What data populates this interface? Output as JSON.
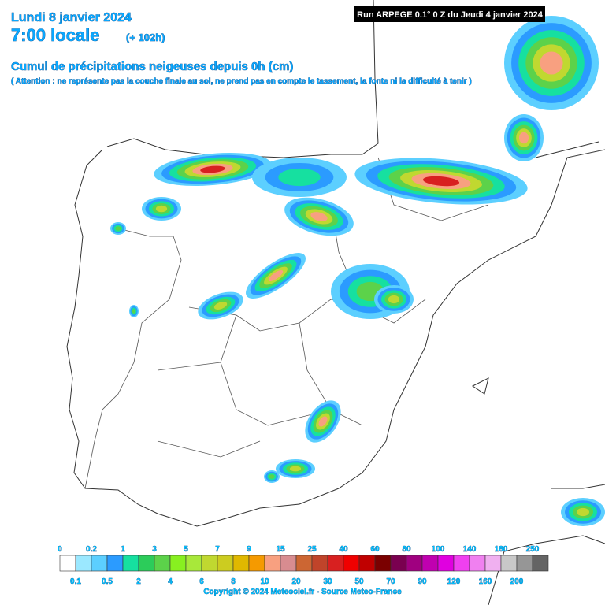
{
  "header": {
    "date": "Lundi 8 janvier 2024",
    "time": "7:00 locale",
    "lead": "(+ 102h)",
    "run": "Run ARPEGE 0.1° 0 Z du Jeudi 4 janvier 2024",
    "title": "Cumul de précipitations neigeuses depuis 0h (cm)",
    "note": "( Attention : ne représente pas la couche finale au sol, ne prend pas en compte le tassement, la fonte ni la difficulté à tenir )"
  },
  "legend": {
    "values": [
      0,
      0.1,
      0.2,
      0.5,
      1,
      2,
      3,
      4,
      5,
      6,
      7,
      8,
      9,
      10,
      15,
      20,
      25,
      30,
      40,
      50,
      60,
      70,
      80,
      90,
      100,
      120,
      140,
      160,
      180,
      200,
      250
    ],
    "colors": [
      "#ffffff",
      "#9be8ff",
      "#5ccfff",
      "#2b9bff",
      "#16e0a0",
      "#2ccc5a",
      "#5cd24a",
      "#88f020",
      "#a8e83a",
      "#c0d830",
      "#cccc20",
      "#e0b800",
      "#f59a00",
      "#f8a080",
      "#d88c90",
      "#cc6633",
      "#c0442a",
      "#d82020",
      "#f00000",
      "#c00000",
      "#7a0000",
      "#7a0050",
      "#a00080",
      "#c000b0",
      "#e000e0",
      "#f040f0",
      "#f080f0",
      "#f0b0f0",
      "#c8c8c8",
      "#969696",
      "#646464"
    ]
  },
  "footer": {
    "copyright": "Copyright © 2024 Meteociel.fr - Source Meteo-France"
  }
}
